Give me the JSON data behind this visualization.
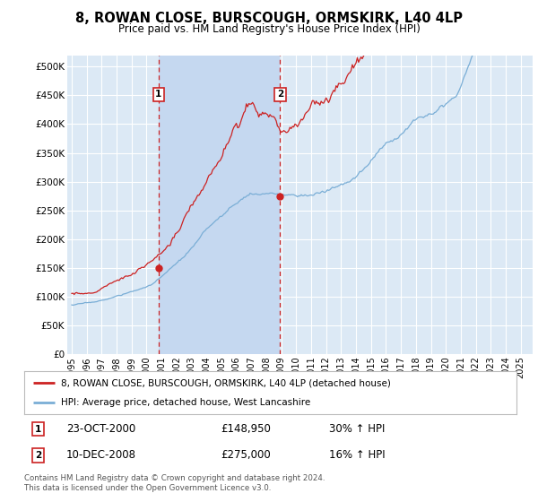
{
  "title": "8, ROWAN CLOSE, BURSCOUGH, ORMSKIRK, L40 4LP",
  "subtitle": "Price paid vs. HM Land Registry's House Price Index (HPI)",
  "ylabel_ticks": [
    "£0",
    "£50K",
    "£100K",
    "£150K",
    "£200K",
    "£250K",
    "£300K",
    "£350K",
    "£400K",
    "£450K",
    "£500K"
  ],
  "ytick_values": [
    0,
    50000,
    100000,
    150000,
    200000,
    250000,
    300000,
    350000,
    400000,
    450000,
    500000
  ],
  "ylim": [
    0,
    520000
  ],
  "xlim_start": 1994.7,
  "xlim_end": 2025.8,
  "background_color": "#ffffff",
  "plot_bg_color": "#dce9f5",
  "shade_color": "#c5d8f0",
  "grid_color": "#ffffff",
  "hpi_line_color": "#7aaed6",
  "price_line_color": "#cc2222",
  "transaction1_x": 2000.8,
  "transaction1_y": 148950,
  "transaction2_x": 2008.92,
  "transaction2_y": 275000,
  "legend_line1": "8, ROWAN CLOSE, BURSCOUGH, ORMSKIRK, L40 4LP (detached house)",
  "legend_line2": "HPI: Average price, detached house, West Lancashire",
  "transaction1_date": "23-OCT-2000",
  "transaction1_price": "£148,950",
  "transaction1_hpi": "30% ↑ HPI",
  "transaction2_date": "10-DEC-2008",
  "transaction2_price": "£275,000",
  "transaction2_hpi": "16% ↑ HPI",
  "footer": "Contains HM Land Registry data © Crown copyright and database right 2024.\nThis data is licensed under the Open Government Licence v3.0.",
  "xtick_years": [
    "1995",
    "1996",
    "1997",
    "1998",
    "1999",
    "2000",
    "2001",
    "2002",
    "2003",
    "2004",
    "2005",
    "2006",
    "2007",
    "2008",
    "2009",
    "2010",
    "2011",
    "2012",
    "2013",
    "2014",
    "2015",
    "2016",
    "2017",
    "2018",
    "2019",
    "2020",
    "2021",
    "2022",
    "2023",
    "2024",
    "2025"
  ]
}
